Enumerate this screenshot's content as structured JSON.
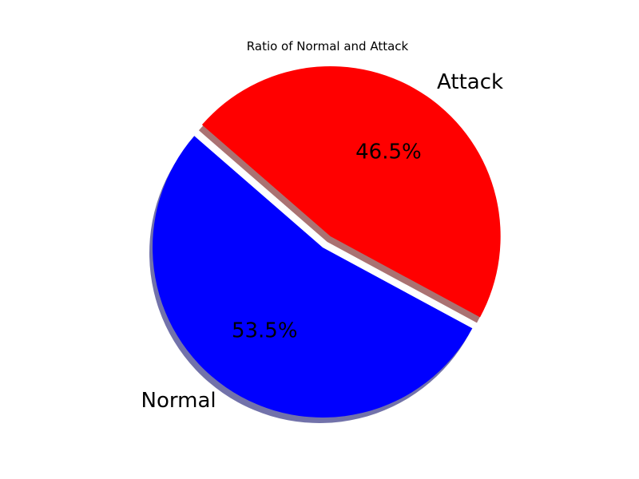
{
  "chart_data": {
    "type": "pie",
    "title": "Ratio of Normal and Attack",
    "slices": [
      {
        "label": "Normal",
        "value": 53.5,
        "pct_label": "53.5%",
        "color": "#0000ff",
        "exploded": false
      },
      {
        "label": "Attack",
        "value": 46.5,
        "pct_label": "46.5%",
        "color": "#ff0000",
        "exploded": true
      }
    ],
    "shadow": true,
    "shadow_color": "#000000"
  }
}
